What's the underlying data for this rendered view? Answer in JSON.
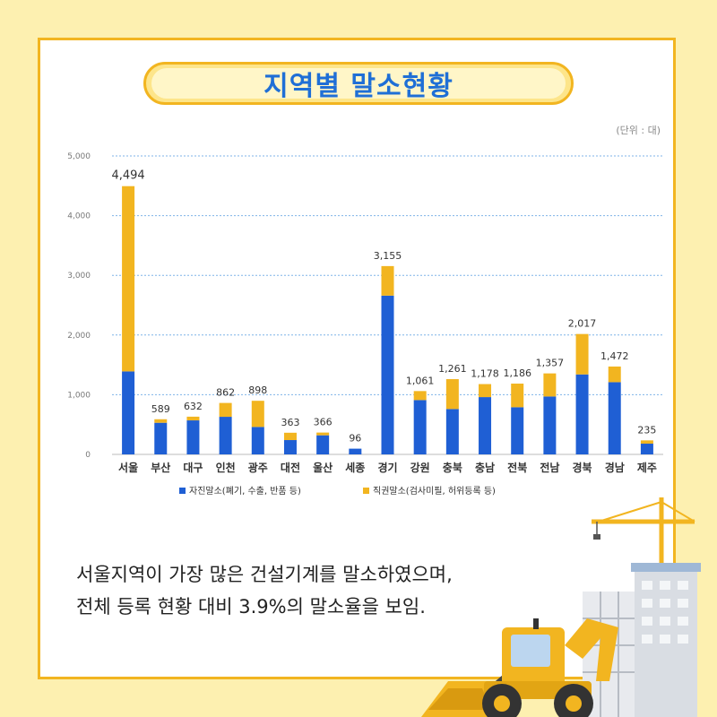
{
  "title": "지역별 말소현황",
  "unit_label": "(단위 : 대)",
  "summary": {
    "line1": "서울지역이 가장 많은 건설기계를 말소하였으며,",
    "line2": "전체 등록 현황 대비 3.9%의 말소율을 보임."
  },
  "colors": {
    "series1": "#1f5fd4",
    "series2": "#f2b520",
    "accent": "#f2b520",
    "title": "#1f6fd6"
  },
  "chart_data": {
    "type": "bar",
    "stacked": true,
    "categories": [
      "서울",
      "부산",
      "대구",
      "인천",
      "광주",
      "대전",
      "울산",
      "세종",
      "경기",
      "강원",
      "충북",
      "충남",
      "전북",
      "전남",
      "경북",
      "경남",
      "제주"
    ],
    "series": [
      {
        "name": "자진말소(폐기, 수출, 반품 등)",
        "values": [
          1390,
          530,
          570,
          630,
          460,
          240,
          320,
          96,
          2660,
          910,
          760,
          960,
          790,
          970,
          1340,
          1210,
          180
        ]
      },
      {
        "name": "직권말소(검사미필, 허위등록 등)",
        "values": [
          3104,
          59,
          62,
          232,
          438,
          123,
          46,
          0,
          495,
          151,
          501,
          218,
          396,
          387,
          677,
          262,
          55
        ]
      }
    ],
    "totals": [
      4494,
      589,
      632,
      862,
      898,
      363,
      366,
      96,
      3155,
      1061,
      1261,
      1178,
      1186,
      1357,
      2017,
      1472,
      235
    ],
    "total_labels": [
      "4,494",
      "589",
      "632",
      "862",
      "898",
      "363",
      "366",
      "96",
      "3,155",
      "1,061",
      "1,261",
      "1,178",
      "1,186",
      "1,357",
      "2,017",
      "1,472",
      "235"
    ],
    "y_ticks": [
      "0",
      "1,000",
      "2,000",
      "3,000",
      "4,000",
      "5,000"
    ],
    "y_tick_values": [
      0,
      1000,
      2000,
      3000,
      4000,
      5000
    ],
    "ylim": [
      0,
      5000
    ],
    "grid": true,
    "legend_position": "bottom"
  }
}
